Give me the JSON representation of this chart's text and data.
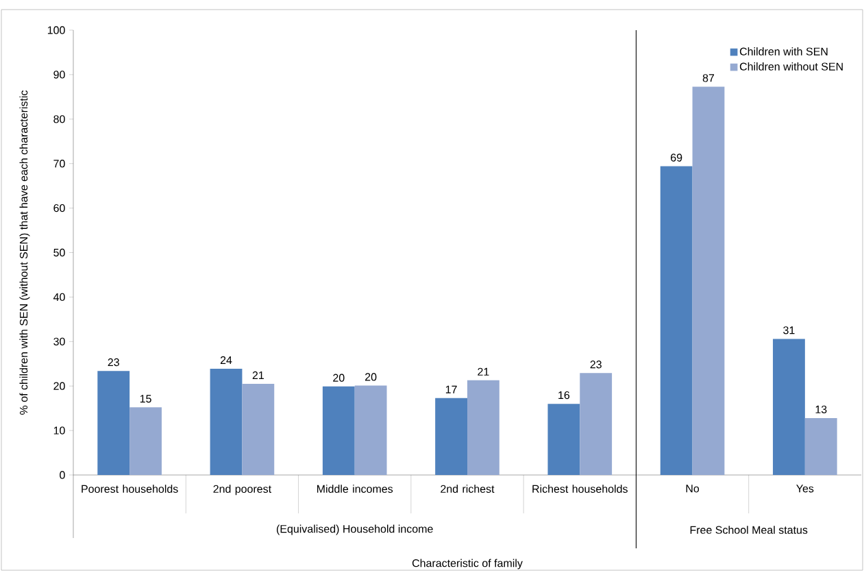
{
  "chart_data": {
    "type": "bar",
    "ylabel": "% of children with SEN (without SEN) that have each characteristic",
    "categories": [
      "Poorest households",
      "2nd poorest",
      "Middle incomes",
      "2nd richest",
      "Richest households",
      "No",
      "Yes"
    ],
    "series": [
      {
        "name": "Children with SEN",
        "color": "#4f81bd",
        "values": [
          23.4,
          23.9,
          19.9,
          17.3,
          16.0,
          69.4,
          30.6
        ],
        "value_labels": [
          "23",
          "24",
          "20",
          "17",
          "16",
          "69",
          "31"
        ]
      },
      {
        "name": "Children without SEN",
        "color": "#95a9d1",
        "values": [
          15.2,
          20.5,
          20.1,
          21.3,
          22.9,
          87.3,
          12.8
        ],
        "value_labels": [
          "15",
          "21",
          "20",
          "21",
          "23",
          "87",
          "13"
        ]
      }
    ],
    "ylim": [
      0,
      100
    ],
    "yticks": [
      0,
      10,
      20,
      30,
      40,
      50,
      60,
      70,
      80,
      90,
      100
    ],
    "annotations": [
      "(Equivalised) Household income",
      "Free School Meal status",
      "Characteristic of family"
    ],
    "legend": "top right",
    "grid": false
  }
}
